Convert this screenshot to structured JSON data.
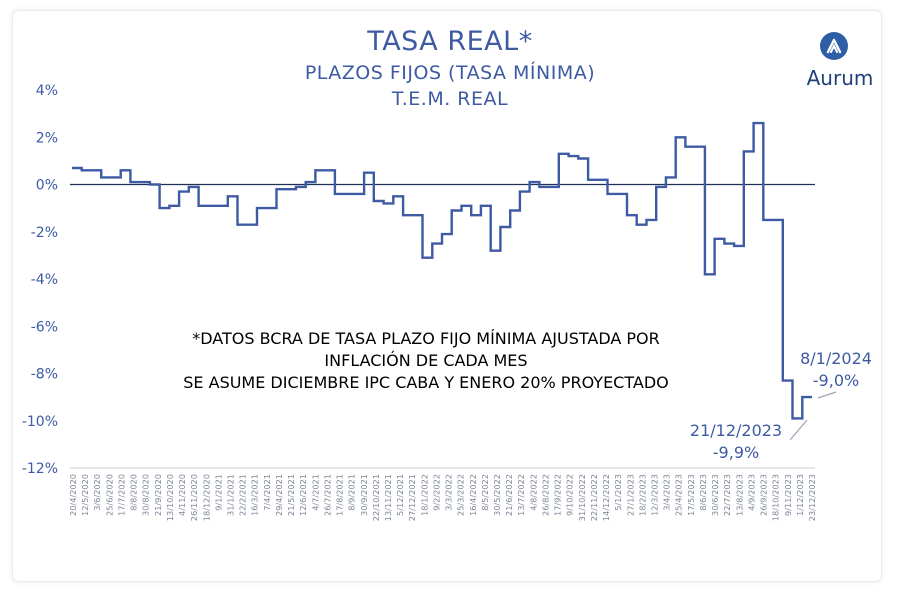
{
  "title": "TASA REAL*",
  "subtitle1": "PLAZOS FIJOS (TASA MÍNIMA)",
  "subtitle2": "T.E.M. REAL",
  "logo_text": "Aurum",
  "note_lines": [
    "*DATOS BCRA DE TASA PLAZO FIJO MÍNIMA AJUSTADA POR",
    "INFLACIÓN DE CADA MES",
    "SE ASUME DICIEMBRE IPC CABA Y ENERO 20% PROYECTADO"
  ],
  "annotations": {
    "a1_date": "8/1/2024",
    "a1_value": "-9,0%",
    "a2_date": "21/12/2023",
    "a2_value": "-9,9%"
  },
  "colors": {
    "accent": "#3d5aa3",
    "line": "#3d5aa3",
    "zero": "#1f2f55",
    "axis": "#555555"
  },
  "chart_data": {
    "type": "line",
    "title": "TASA REAL*",
    "ylim": [
      -12,
      4
    ],
    "yticks": [
      4,
      2,
      0,
      -2,
      -4,
      -6,
      -8,
      -10,
      -12
    ],
    "yticklabels": [
      "4%",
      "2%",
      "0%",
      "-2%",
      "-4%",
      "-6%",
      "-8%",
      "-10%",
      "-12%"
    ],
    "xticklabels": [
      "20/4/2020",
      "12/5/2020",
      "3/6/2020",
      "25/6/2020",
      "17/7/2020",
      "8/8/2020",
      "30/8/2020",
      "21/9/2020",
      "13/10/2020",
      "4/11/2020",
      "26/11/2020",
      "18/12/2020",
      "9/1/2021",
      "31/1/2021",
      "22/2/2021",
      "16/3/2021",
      "7/4/2021",
      "29/4/2021",
      "21/5/2021",
      "12/6/2021",
      "4/7/2021",
      "26/7/2021",
      "17/8/2021",
      "8/9/2021",
      "30/9/2021",
      "22/10/2021",
      "13/11/2021",
      "5/12/2021",
      "27/12/2021",
      "18/1/2022",
      "9/2/2022",
      "3/3/2022",
      "25/3/2022",
      "16/4/2022",
      "8/5/2022",
      "30/5/2022",
      "21/6/2022",
      "13/7/2022",
      "4/8/2022",
      "26/8/2022",
      "17/9/2022",
      "9/10/2022",
      "31/10/2022",
      "22/11/2022",
      "14/12/2022",
      "5/1/2023",
      "27/1/2023",
      "18/2/2023",
      "12/3/2023",
      "3/4/2023",
      "25/4/2023",
      "17/5/2023",
      "8/6/2023",
      "30/6/2023",
      "22/7/2023",
      "13/8/2023",
      "4/9/2023",
      "26/9/2023",
      "18/10/2023",
      "9/11/2023",
      "1/12/2023",
      "23/12/2023"
    ],
    "series": [
      {
        "values": [
          0.7,
          0.6,
          0.6,
          0.3,
          0.3,
          0.6,
          0.1,
          0.1,
          0.0,
          -1.0,
          -0.9,
          -0.3,
          -0.1,
          -0.9,
          -0.9,
          -0.9,
          -0.5,
          -1.7,
          -1.7,
          -1.0,
          -1.0,
          -0.2,
          -0.2,
          -0.1,
          0.1,
          0.6,
          0.6,
          -0.4,
          -0.4,
          -0.4,
          0.5,
          -0.7,
          -0.8,
          -0.5,
          -1.3,
          -1.3,
          -3.1,
          -2.5,
          -2.1,
          -1.1,
          -0.9,
          -1.3,
          -0.9,
          -2.8,
          -1.8,
          -1.1,
          -0.3,
          0.1,
          -0.1,
          -0.1,
          1.3,
          1.2,
          1.1,
          0.2,
          0.2,
          -0.4,
          -0.4,
          -1.3,
          -1.7,
          -1.5,
          -0.1,
          0.3,
          2.0,
          1.6,
          1.6,
          -3.8,
          -2.3,
          -2.5,
          -2.6,
          1.4,
          2.6,
          -1.5,
          -1.5,
          -8.3,
          -9.9,
          -9.0
        ]
      }
    ]
  }
}
